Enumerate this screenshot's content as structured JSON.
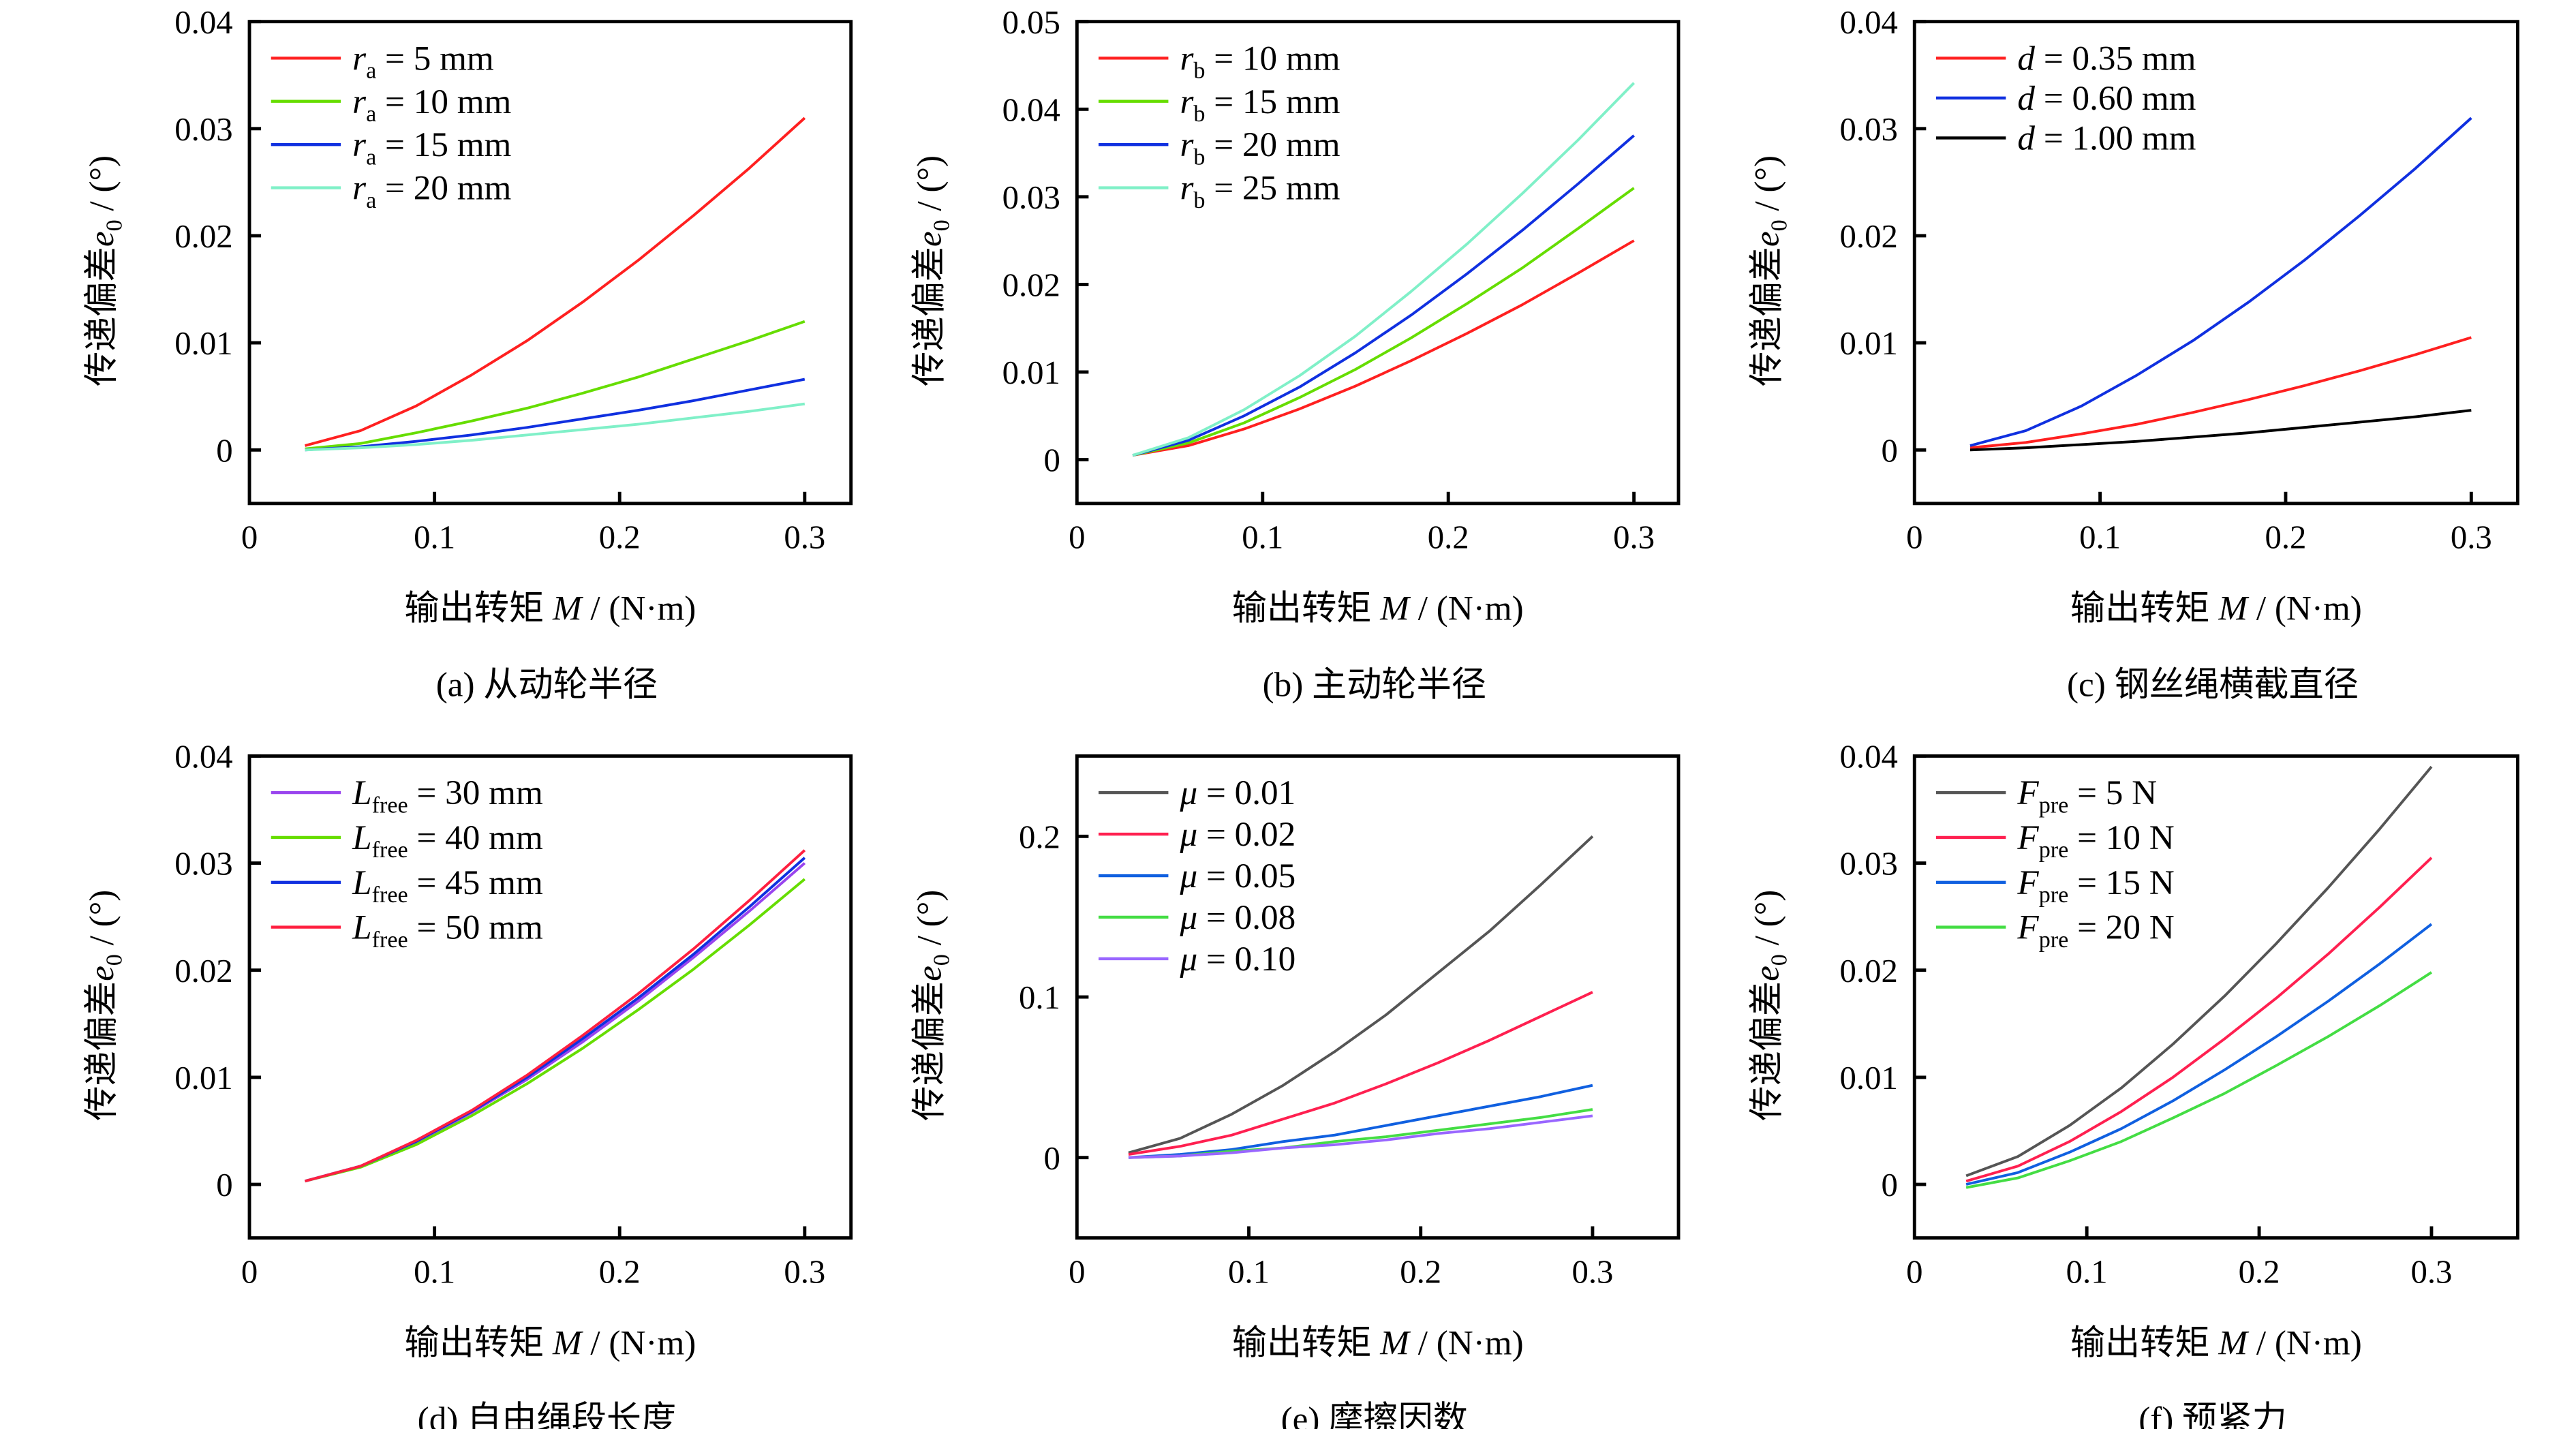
{
  "x": [
    0.03,
    0.06,
    0.09,
    0.12,
    0.15,
    0.18,
    0.21,
    0.24,
    0.27,
    0.3
  ],
  "chart_data": [
    {
      "type": "line",
      "caption": "(a) 从动轮半径",
      "xlabel": {
        "prefix": "输出转矩 ",
        "var": "M",
        "suffix": " / (N·m)"
      },
      "ylabel": {
        "prefix": "传递偏差",
        "var": "e",
        "sub": "0",
        "suffix": " / (°)"
      },
      "xlim": [
        0,
        0.325
      ],
      "ylim": [
        -0.005,
        0.04
      ],
      "xticks": [
        0,
        0.1,
        0.2,
        0.3
      ],
      "xtick_labels": [
        "0",
        "0.1",
        "0.2",
        "0.3"
      ],
      "yticks": [
        0,
        0.01,
        0.02,
        0.03,
        0.04
      ],
      "ytick_labels": [
        "0",
        "0.01",
        "0.02",
        "0.03",
        "0.04"
      ],
      "legend_position": "top-left",
      "series": [
        {
          "sym": "r",
          "sub": "a",
          "rest": " = 5 mm",
          "color": "#ff2020",
          "values": [
            0.0004,
            0.0018,
            0.0041,
            0.007,
            0.0102,
            0.0138,
            0.0177,
            0.0219,
            0.0263,
            0.031
          ]
        },
        {
          "sym": "r",
          "sub": "a",
          "rest": " = 10 mm",
          "color": "#66dd00",
          "values": [
            0.0001,
            0.0006,
            0.0016,
            0.0027,
            0.0039,
            0.0053,
            0.0068,
            0.0085,
            0.0102,
            0.012
          ]
        },
        {
          "sym": "r",
          "sub": "a",
          "rest": " = 15 mm",
          "color": "#1030e0",
          "values": [
            0,
            0.0003,
            0.0008,
            0.0014,
            0.0021,
            0.0029,
            0.0037,
            0.0046,
            0.0056,
            0.0066
          ]
        },
        {
          "sym": "r",
          "sub": "a",
          "rest": " = 20 mm",
          "color": "#80f0c8",
          "values": [
            0,
            0.0002,
            0.0005,
            0.0009,
            0.0014,
            0.0019,
            0.0024,
            0.003,
            0.0036,
            0.0043
          ]
        }
      ]
    },
    {
      "type": "line",
      "caption": "(b) 主动轮半径",
      "xlabel": {
        "prefix": "输出转矩 ",
        "var": "M",
        "suffix": " / (N·m)"
      },
      "ylabel": {
        "prefix": "传递偏差",
        "var": "e",
        "sub": "0",
        "suffix": " / (°)"
      },
      "xlim": [
        0,
        0.324
      ],
      "ylim": [
        -0.005,
        0.05
      ],
      "xticks": [
        0,
        0.1,
        0.2,
        0.3
      ],
      "xtick_labels": [
        "0",
        "0.1",
        "0.2",
        "0.3"
      ],
      "yticks": [
        0,
        0.01,
        0.02,
        0.03,
        0.04,
        0.05
      ],
      "ytick_labels": [
        "0",
        "0.01",
        "0.02",
        "0.03",
        "0.04",
        "0.05"
      ],
      "legend_position": "top-left",
      "series": [
        {
          "sym": "r",
          "sub": "b",
          "rest": " = 10 mm",
          "color": "#ff2020",
          "values": [
            0.0005,
            0.0016,
            0.0035,
            0.0058,
            0.0084,
            0.0113,
            0.0144,
            0.0177,
            0.0213,
            0.025
          ]
        },
        {
          "sym": "r",
          "sub": "b",
          "rest": " = 15 mm",
          "color": "#66dd00",
          "values": [
            0.0005,
            0.0019,
            0.0042,
            0.0071,
            0.0103,
            0.0139,
            0.0178,
            0.0219,
            0.0264,
            0.031
          ]
        },
        {
          "sym": "r",
          "sub": "b",
          "rest": " = 20 mm",
          "color": "#1030e0",
          "values": [
            0.0005,
            0.0022,
            0.005,
            0.0083,
            0.0122,
            0.0165,
            0.0212,
            0.0262,
            0.0315,
            0.037
          ]
        },
        {
          "sym": "r",
          "sub": "b",
          "rest": " = 25 mm",
          "color": "#80f0c8",
          "values": [
            0.0005,
            0.0025,
            0.0057,
            0.0096,
            0.0141,
            0.0192,
            0.0246,
            0.0304,
            0.0365,
            0.043
          ]
        }
      ]
    },
    {
      "type": "line",
      "caption": "(c) 钢丝绳横截直径",
      "xlabel": {
        "prefix": "输出转矩 ",
        "var": "M",
        "suffix": " / (N·m)"
      },
      "ylabel": {
        "prefix": "传递偏差",
        "var": "e",
        "sub": "0",
        "suffix": " / (°)"
      },
      "xlim": [
        0,
        0.325
      ],
      "ylim": [
        -0.005,
        0.04
      ],
      "xticks": [
        0,
        0.1,
        0.2,
        0.3
      ],
      "xtick_labels": [
        "0",
        "0.1",
        "0.2",
        "0.3"
      ],
      "yticks": [
        0,
        0.01,
        0.02,
        0.03,
        0.04
      ],
      "ytick_labels": [
        "0",
        "0.01",
        "0.02",
        "0.03",
        "0.04"
      ],
      "legend_position": "top-left",
      "series": [
        {
          "sym": "d",
          "sub": "",
          "rest": " = 0.35 mm",
          "color": "#ff2020",
          "values": [
            0.0002,
            0.0007,
            0.0015,
            0.0024,
            0.0035,
            0.0047,
            0.006,
            0.0074,
            0.0089,
            0.0105
          ]
        },
        {
          "sym": "d",
          "sub": "",
          "rest": " = 0.60 mm",
          "color": "#1030e0",
          "values": [
            0.0004,
            0.0018,
            0.0041,
            0.007,
            0.0102,
            0.0138,
            0.0177,
            0.0219,
            0.0263,
            0.031
          ]
        },
        {
          "sym": "d",
          "sub": "",
          "rest": " = 1.00 mm",
          "color": "#000000",
          "values": [
            0,
            0.0002,
            0.0005,
            0.0008,
            0.0012,
            0.0016,
            0.0021,
            0.0026,
            0.0031,
            0.0037
          ]
        }
      ]
    },
    {
      "type": "line",
      "caption": "(d) 自由绳段长度",
      "xlabel": {
        "prefix": "输出转矩 ",
        "var": "M",
        "suffix": " / (N·m)"
      },
      "ylabel": {
        "prefix": "传递偏差",
        "var": "e",
        "sub": "0",
        "suffix": " / (°)"
      },
      "xlim": [
        0,
        0.325
      ],
      "ylim": [
        -0.005,
        0.04
      ],
      "xticks": [
        0,
        0.1,
        0.2,
        0.3
      ],
      "xtick_labels": [
        "0",
        "0.1",
        "0.2",
        "0.3"
      ],
      "yticks": [
        0,
        0.01,
        0.02,
        0.03,
        0.04
      ],
      "ytick_labels": [
        "0",
        "0.01",
        "0.02",
        "0.03",
        "0.04"
      ],
      "legend_position": "top-left",
      "series": [
        {
          "sym": "L",
          "sub": "free",
          "rest": " = 30 mm",
          "color": "#9944ee",
          "values": [
            0.0003,
            0.0017,
            0.0039,
            0.0067,
            0.0098,
            0.0133,
            0.0171,
            0.0212,
            0.0255,
            0.03
          ]
        },
        {
          "sym": "L",
          "sub": "free",
          "rest": " = 40 mm",
          "color": "#66dd00",
          "values": [
            0.0003,
            0.0016,
            0.0037,
            0.0064,
            0.0094,
            0.0127,
            0.0163,
            0.0201,
            0.0242,
            0.0285
          ]
        },
        {
          "sym": "L",
          "sub": "free",
          "rest": " = 45 mm",
          "color": "#1030e0",
          "values": [
            0.0003,
            0.0017,
            0.004,
            0.0068,
            0.01,
            0.0136,
            0.0174,
            0.0215,
            0.0259,
            0.0305
          ]
        },
        {
          "sym": "L",
          "sub": "free",
          "rest": " = 50 mm",
          "color": "#ff2040",
          "values": [
            0.0003,
            0.0017,
            0.0041,
            0.0069,
            0.0102,
            0.0139,
            0.0178,
            0.022,
            0.0265,
            0.0312
          ]
        }
      ]
    },
    {
      "type": "line",
      "caption": "(e) 摩擦因数",
      "xlabel": {
        "prefix": "输出转矩 ",
        "var": "M",
        "suffix": " / (N·m)"
      },
      "ylabel": {
        "prefix": "传递偏差",
        "var": "e",
        "sub": "0",
        "suffix": " / (°)"
      },
      "xlim": [
        0,
        0.35
      ],
      "ylim": [
        -0.05,
        0.25
      ],
      "xticks": [
        0,
        0.1,
        0.2,
        0.3
      ],
      "xtick_labels": [
        "0",
        "0.1",
        "0.2",
        "0.3"
      ],
      "yticks": [
        0,
        0.1,
        0.2
      ],
      "ytick_labels": [
        "0",
        "0.1",
        "0.2"
      ],
      "legend_position": "top-left",
      "series": [
        {
          "sym": "μ",
          "sub": "",
          "rest": " = 0.01",
          "color": "#555555",
          "values": [
            0.003,
            0.012,
            0.027,
            0.045,
            0.066,
            0.089,
            0.115,
            0.141,
            0.17,
            0.2
          ]
        },
        {
          "sym": "μ",
          "sub": "",
          "rest": " = 0.02",
          "color": "#ff2050",
          "values": [
            0.002,
            0.007,
            0.014,
            0.024,
            0.034,
            0.046,
            0.059,
            0.073,
            0.088,
            0.103
          ]
        },
        {
          "sym": "μ",
          "sub": "",
          "rest": " = 0.05",
          "color": "#1060e0",
          "values": [
            0,
            0.002,
            0.005,
            0.01,
            0.014,
            0.02,
            0.026,
            0.032,
            0.038,
            0.045
          ]
        },
        {
          "sym": "μ",
          "sub": "",
          "rest": " = 0.08",
          "color": "#44dd44",
          "values": [
            0,
            0.001,
            0.004,
            0.006,
            0.01,
            0.013,
            0.017,
            0.021,
            0.025,
            0.03
          ]
        },
        {
          "sym": "μ",
          "sub": "",
          "rest": " = 0.10",
          "color": "#9966ff",
          "values": [
            0,
            0.001,
            0.003,
            0.006,
            0.008,
            0.011,
            0.015,
            0.018,
            0.022,
            0.026
          ]
        }
      ]
    },
    {
      "type": "line",
      "caption": "(f) 预紧力",
      "xlabel": {
        "prefix": "输出转矩 ",
        "var": "M",
        "suffix": " / (N·m)"
      },
      "ylabel": {
        "prefix": "传递偏差",
        "var": "e",
        "sub": "0",
        "suffix": " / (°)"
      },
      "xlim": [
        0,
        0.35
      ],
      "ylim": [
        -0.005,
        0.04
      ],
      "xticks": [
        0,
        0.1,
        0.2,
        0.3
      ],
      "xtick_labels": [
        "0",
        "0.1",
        "0.2",
        "0.3"
      ],
      "yticks": [
        0,
        0.01,
        0.02,
        0.03,
        0.04
      ],
      "ytick_labels": [
        "0",
        "0.01",
        "0.02",
        "0.03",
        "0.04"
      ],
      "legend_position": "top-left",
      "series": [
        {
          "sym": "F",
          "sub": "pre",
          "rest": " = 5 N",
          "color": "#555555",
          "values": [
            0.0008,
            0.0026,
            0.0055,
            0.009,
            0.0131,
            0.0176,
            0.0225,
            0.0277,
            0.0332,
            0.039
          ]
        },
        {
          "sym": "F",
          "sub": "pre",
          "rest": " = 10 N",
          "color": "#ff2050",
          "values": [
            0.0003,
            0.0017,
            0.004,
            0.0068,
            0.01,
            0.0136,
            0.0174,
            0.0215,
            0.0259,
            0.0305
          ]
        },
        {
          "sym": "F",
          "sub": "pre",
          "rest": " = 15 N",
          "color": "#1060e0",
          "values": [
            0,
            0.0011,
            0.003,
            0.0052,
            0.0078,
            0.0107,
            0.0138,
            0.0171,
            0.0206,
            0.0243
          ]
        },
        {
          "sym": "F",
          "sub": "pre",
          "rest": " = 20 N",
          "color": "#44dd44",
          "values": [
            -0.0003,
            0.0006,
            0.0022,
            0.004,
            0.0062,
            0.0085,
            0.0111,
            0.0138,
            0.0167,
            0.0198
          ]
        }
      ]
    }
  ]
}
